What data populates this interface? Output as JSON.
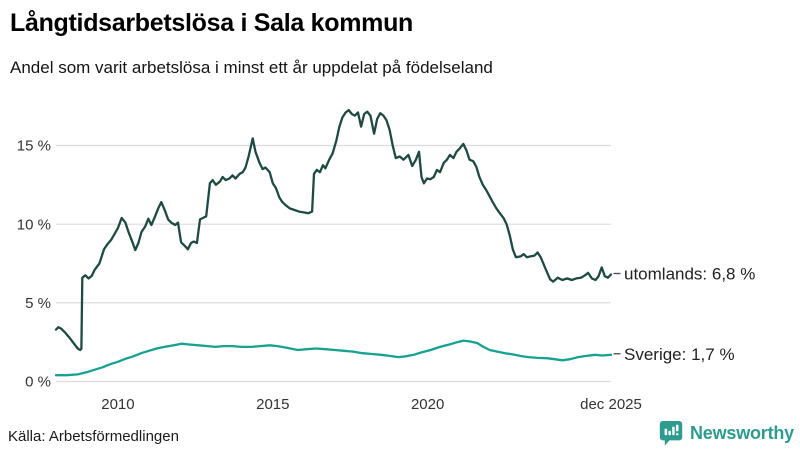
{
  "header": {
    "title": "Långtidsarbetslösa i Sala kommun",
    "subtitle": "Andel som varit arbetslösa i minst ett år uppdelat på födelseland"
  },
  "footer": {
    "source": "Källa: Arbetsförmedlingen",
    "brand": "Newsworthy"
  },
  "colors": {
    "utomlands_line": "#1f4a42",
    "sverige_line": "#16a191",
    "gridline": "#dcdcdc",
    "tick_text": "#333333",
    "label_text": "#222222",
    "connector": "#555555",
    "brand_teal": "#2d9c8e"
  },
  "chart_data": {
    "type": "line",
    "title": "Långtidsarbetslösa i Sala kommun",
    "subtitle": "Andel som varit arbetslösa i minst ett år uppdelat på födelseland",
    "xlabel": "",
    "ylabel": "",
    "unit": "%",
    "grid": "horizontal",
    "legend_position": "end-of-line",
    "xlim": [
      2008.0,
      2025.92
    ],
    "ylim": [
      0,
      18
    ],
    "yticks": [
      {
        "value": 0,
        "label": "0 %"
      },
      {
        "value": 5,
        "label": "5 %"
      },
      {
        "value": 10,
        "label": "10 %"
      },
      {
        "value": 15,
        "label": "15 %"
      }
    ],
    "xticks": [
      {
        "value": 2010,
        "label": "2010"
      },
      {
        "value": 2015,
        "label": "2015"
      },
      {
        "value": 2020,
        "label": "2020"
      },
      {
        "value": 2025.92,
        "label": "dec 2025"
      }
    ],
    "series": [
      {
        "name": "utomlands",
        "end_label": "utomlands: 6,8 %",
        "end_value": "6,8 %",
        "color": "#1f4a42",
        "points": [
          [
            2008.0,
            3.3
          ],
          [
            2008.08,
            3.45
          ],
          [
            2008.17,
            3.35
          ],
          [
            2008.3,
            3.1
          ],
          [
            2008.45,
            2.75
          ],
          [
            2008.58,
            2.4
          ],
          [
            2008.7,
            2.1
          ],
          [
            2008.78,
            2.0
          ],
          [
            2008.82,
            2.1
          ],
          [
            2008.85,
            6.6
          ],
          [
            2008.95,
            6.75
          ],
          [
            2009.05,
            6.55
          ],
          [
            2009.15,
            6.7
          ],
          [
            2009.25,
            7.1
          ],
          [
            2009.4,
            7.5
          ],
          [
            2009.55,
            8.4
          ],
          [
            2009.65,
            8.7
          ],
          [
            2009.78,
            9.0
          ],
          [
            2009.9,
            9.4
          ],
          [
            2010.0,
            9.75
          ],
          [
            2010.12,
            10.4
          ],
          [
            2010.24,
            10.1
          ],
          [
            2010.34,
            9.5
          ],
          [
            2010.44,
            9.0
          ],
          [
            2010.56,
            8.35
          ],
          [
            2010.66,
            8.8
          ],
          [
            2010.76,
            9.5
          ],
          [
            2010.88,
            9.85
          ],
          [
            2010.98,
            10.35
          ],
          [
            2011.08,
            9.95
          ],
          [
            2011.2,
            10.5
          ],
          [
            2011.3,
            11.0
          ],
          [
            2011.4,
            11.4
          ],
          [
            2011.53,
            10.8
          ],
          [
            2011.62,
            10.3
          ],
          [
            2011.72,
            10.1
          ],
          [
            2011.85,
            9.95
          ],
          [
            2011.94,
            10.1
          ],
          [
            2012.04,
            8.85
          ],
          [
            2012.17,
            8.6
          ],
          [
            2012.26,
            8.4
          ],
          [
            2012.36,
            8.8
          ],
          [
            2012.45,
            8.9
          ],
          [
            2012.55,
            8.8
          ],
          [
            2012.65,
            10.3
          ],
          [
            2012.75,
            10.4
          ],
          [
            2012.85,
            10.5
          ],
          [
            2012.97,
            12.6
          ],
          [
            2013.06,
            12.8
          ],
          [
            2013.16,
            12.5
          ],
          [
            2013.29,
            12.7
          ],
          [
            2013.38,
            13.0
          ],
          [
            2013.48,
            12.8
          ],
          [
            2013.6,
            12.9
          ],
          [
            2013.7,
            13.1
          ],
          [
            2013.8,
            12.9
          ],
          [
            2013.93,
            13.2
          ],
          [
            2014.03,
            13.3
          ],
          [
            2014.12,
            13.6
          ],
          [
            2014.22,
            14.3
          ],
          [
            2014.35,
            15.45
          ],
          [
            2014.44,
            14.6
          ],
          [
            2014.57,
            13.9
          ],
          [
            2014.67,
            13.5
          ],
          [
            2014.76,
            13.6
          ],
          [
            2014.9,
            13.3
          ],
          [
            2015.0,
            12.6
          ],
          [
            2015.1,
            12.3
          ],
          [
            2015.21,
            11.7
          ],
          [
            2015.31,
            11.4
          ],
          [
            2015.42,
            11.2
          ],
          [
            2015.55,
            11.0
          ],
          [
            2015.7,
            10.9
          ],
          [
            2015.85,
            10.8
          ],
          [
            2016.0,
            10.75
          ],
          [
            2016.15,
            10.7
          ],
          [
            2016.27,
            10.8
          ],
          [
            2016.33,
            13.2
          ],
          [
            2016.42,
            13.45
          ],
          [
            2016.52,
            13.3
          ],
          [
            2016.62,
            13.75
          ],
          [
            2016.7,
            13.55
          ],
          [
            2016.82,
            14.1
          ],
          [
            2016.93,
            14.5
          ],
          [
            2017.05,
            15.3
          ],
          [
            2017.15,
            16.2
          ],
          [
            2017.25,
            16.8
          ],
          [
            2017.35,
            17.1
          ],
          [
            2017.45,
            17.25
          ],
          [
            2017.55,
            17.0
          ],
          [
            2017.65,
            16.9
          ],
          [
            2017.75,
            17.1
          ],
          [
            2017.85,
            16.2
          ],
          [
            2017.95,
            17.0
          ],
          [
            2018.05,
            17.15
          ],
          [
            2018.15,
            16.9
          ],
          [
            2018.27,
            15.75
          ],
          [
            2018.37,
            16.7
          ],
          [
            2018.47,
            17.05
          ],
          [
            2018.57,
            16.9
          ],
          [
            2018.67,
            16.6
          ],
          [
            2018.77,
            16.0
          ],
          [
            2018.87,
            15.0
          ],
          [
            2018.97,
            14.2
          ],
          [
            2019.1,
            14.3
          ],
          [
            2019.22,
            14.1
          ],
          [
            2019.38,
            14.4
          ],
          [
            2019.5,
            13.7
          ],
          [
            2019.62,
            14.1
          ],
          [
            2019.72,
            14.6
          ],
          [
            2019.8,
            13.0
          ],
          [
            2019.88,
            12.6
          ],
          [
            2019.98,
            12.9
          ],
          [
            2020.08,
            12.85
          ],
          [
            2020.2,
            13.0
          ],
          [
            2020.3,
            13.45
          ],
          [
            2020.4,
            13.3
          ],
          [
            2020.52,
            13.9
          ],
          [
            2020.62,
            14.1
          ],
          [
            2020.72,
            14.4
          ],
          [
            2020.83,
            14.2
          ],
          [
            2020.93,
            14.6
          ],
          [
            2021.03,
            14.8
          ],
          [
            2021.15,
            15.1
          ],
          [
            2021.25,
            14.7
          ],
          [
            2021.35,
            14.1
          ],
          [
            2021.47,
            14.0
          ],
          [
            2021.57,
            13.65
          ],
          [
            2021.67,
            13.0
          ],
          [
            2021.78,
            12.5
          ],
          [
            2021.88,
            12.2
          ],
          [
            2021.98,
            11.85
          ],
          [
            2022.1,
            11.4
          ],
          [
            2022.22,
            11.0
          ],
          [
            2022.33,
            10.7
          ],
          [
            2022.45,
            10.4
          ],
          [
            2022.55,
            10.0
          ],
          [
            2022.65,
            9.3
          ],
          [
            2022.75,
            8.4
          ],
          [
            2022.85,
            7.9
          ],
          [
            2023.0,
            7.95
          ],
          [
            2023.1,
            8.1
          ],
          [
            2023.2,
            7.9
          ],
          [
            2023.32,
            7.95
          ],
          [
            2023.45,
            8.0
          ],
          [
            2023.55,
            8.2
          ],
          [
            2023.65,
            7.9
          ],
          [
            2023.8,
            7.2
          ],
          [
            2023.95,
            6.5
          ],
          [
            2024.05,
            6.35
          ],
          [
            2024.2,
            6.6
          ],
          [
            2024.35,
            6.45
          ],
          [
            2024.5,
            6.55
          ],
          [
            2024.65,
            6.45
          ],
          [
            2024.8,
            6.55
          ],
          [
            2024.95,
            6.6
          ],
          [
            2025.08,
            6.75
          ],
          [
            2025.18,
            6.9
          ],
          [
            2025.3,
            6.55
          ],
          [
            2025.42,
            6.45
          ],
          [
            2025.52,
            6.7
          ],
          [
            2025.62,
            7.25
          ],
          [
            2025.72,
            6.7
          ],
          [
            2025.82,
            6.6
          ],
          [
            2025.92,
            6.8
          ]
        ]
      },
      {
        "name": "Sverige",
        "end_label": "Sverige: 1,7 %",
        "end_value": "1,7 %",
        "color": "#16a191",
        "points": [
          [
            2008.0,
            0.4
          ],
          [
            2008.35,
            0.4
          ],
          [
            2008.7,
            0.45
          ],
          [
            2009.0,
            0.6
          ],
          [
            2009.25,
            0.75
          ],
          [
            2009.5,
            0.9
          ],
          [
            2009.75,
            1.1
          ],
          [
            2010.0,
            1.25
          ],
          [
            2010.25,
            1.45
          ],
          [
            2010.5,
            1.6
          ],
          [
            2010.75,
            1.8
          ],
          [
            2011.0,
            1.95
          ],
          [
            2011.25,
            2.1
          ],
          [
            2011.5,
            2.2
          ],
          [
            2011.8,
            2.3
          ],
          [
            2012.05,
            2.4
          ],
          [
            2012.3,
            2.35
          ],
          [
            2012.6,
            2.3
          ],
          [
            2012.9,
            2.25
          ],
          [
            2013.15,
            2.2
          ],
          [
            2013.4,
            2.25
          ],
          [
            2013.7,
            2.25
          ],
          [
            2014.0,
            2.2
          ],
          [
            2014.3,
            2.2
          ],
          [
            2014.6,
            2.25
          ],
          [
            2014.9,
            2.3
          ],
          [
            2015.15,
            2.25
          ],
          [
            2015.45,
            2.15
          ],
          [
            2015.8,
            2.0
          ],
          [
            2016.1,
            2.05
          ],
          [
            2016.4,
            2.1
          ],
          [
            2016.7,
            2.05
          ],
          [
            2017.0,
            2.0
          ],
          [
            2017.3,
            1.95
          ],
          [
            2017.6,
            1.9
          ],
          [
            2017.9,
            1.8
          ],
          [
            2018.2,
            1.75
          ],
          [
            2018.5,
            1.7
          ],
          [
            2018.8,
            1.62
          ],
          [
            2019.05,
            1.55
          ],
          [
            2019.3,
            1.6
          ],
          [
            2019.55,
            1.7
          ],
          [
            2019.8,
            1.85
          ],
          [
            2020.1,
            2.0
          ],
          [
            2020.4,
            2.2
          ],
          [
            2020.7,
            2.35
          ],
          [
            2020.95,
            2.5
          ],
          [
            2021.15,
            2.6
          ],
          [
            2021.35,
            2.55
          ],
          [
            2021.6,
            2.45
          ],
          [
            2021.8,
            2.2
          ],
          [
            2022.0,
            2.0
          ],
          [
            2022.25,
            1.9
          ],
          [
            2022.5,
            1.8
          ],
          [
            2022.75,
            1.72
          ],
          [
            2023.0,
            1.62
          ],
          [
            2023.25,
            1.55
          ],
          [
            2023.55,
            1.5
          ],
          [
            2023.85,
            1.48
          ],
          [
            2024.1,
            1.42
          ],
          [
            2024.35,
            1.35
          ],
          [
            2024.6,
            1.42
          ],
          [
            2024.85,
            1.55
          ],
          [
            2025.1,
            1.62
          ],
          [
            2025.4,
            1.7
          ],
          [
            2025.65,
            1.65
          ],
          [
            2025.92,
            1.7
          ]
        ]
      }
    ]
  }
}
